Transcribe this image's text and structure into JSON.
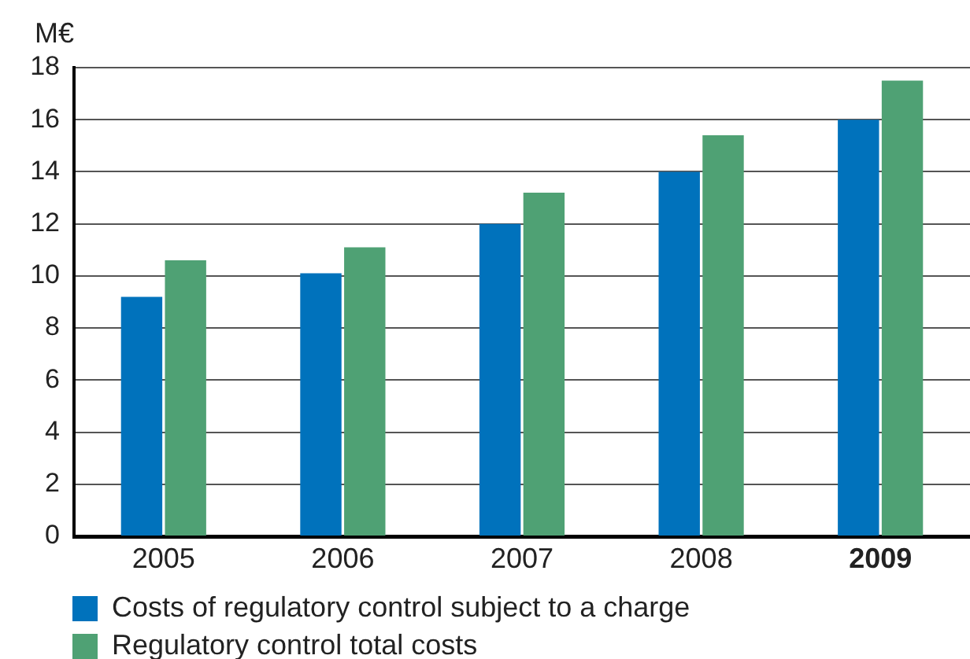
{
  "chart_data": {
    "type": "bar",
    "ylabel": "M€",
    "categories": [
      "2005",
      "2006",
      "2007",
      "2008",
      "2009"
    ],
    "series": [
      {
        "name": "Costs of regulatory control subject to a charge",
        "color": "#0072bc",
        "values": [
          9.2,
          10.1,
          12.0,
          14.0,
          16.0
        ]
      },
      {
        "name": "Regulatory control total costs",
        "color": "#4fa174",
        "values": [
          10.6,
          11.1,
          13.2,
          15.4,
          17.5
        ]
      }
    ],
    "ylim": [
      0,
      18
    ],
    "yticks": [
      0,
      2,
      4,
      6,
      8,
      10,
      12,
      14,
      16,
      18
    ],
    "grid": "y",
    "legend": "bottom left"
  }
}
